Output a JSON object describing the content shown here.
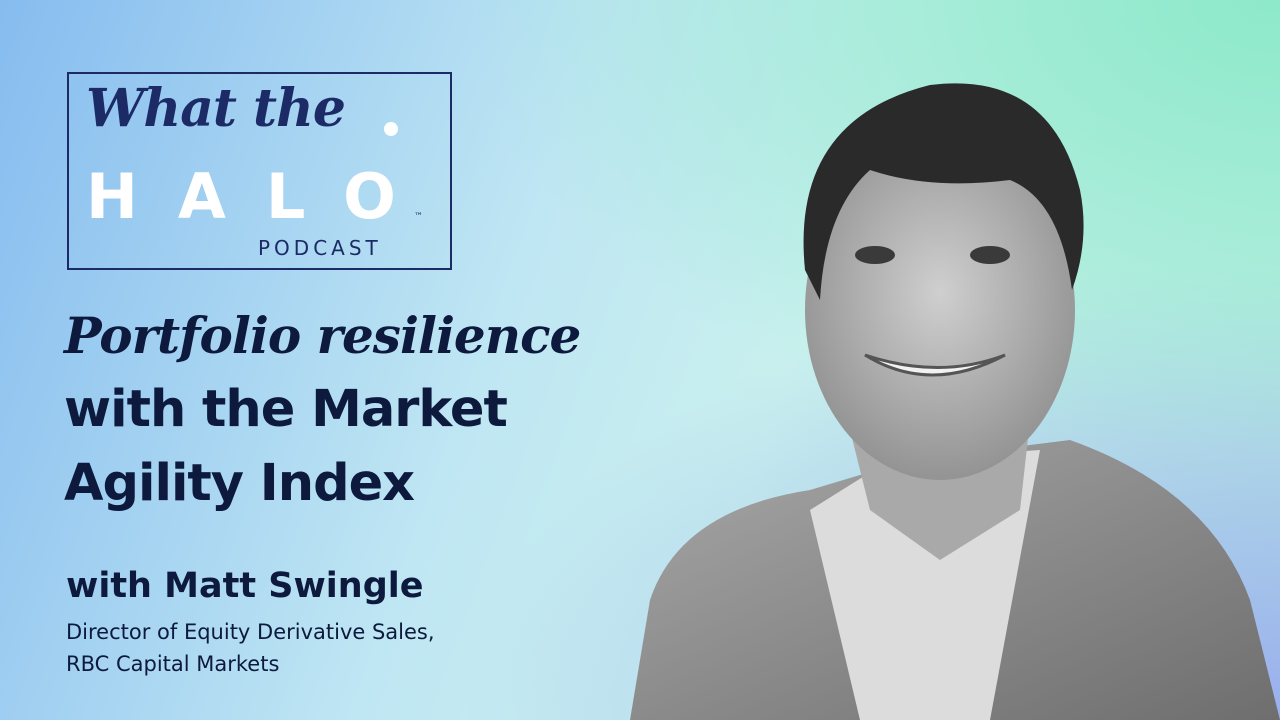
{
  "logo": {
    "line1": "What the",
    "line2": "HALO",
    "trademark": "™",
    "line3": "PODCAST"
  },
  "episode": {
    "title_line1": "Portfolio resilience",
    "title_line2": "with the Market",
    "title_line3": "Agility Index"
  },
  "guest": {
    "name": "with Matt Swingle",
    "role_line1": "Director of Equity Derivative Sales,",
    "role_line2": "RBC Capital Markets"
  }
}
